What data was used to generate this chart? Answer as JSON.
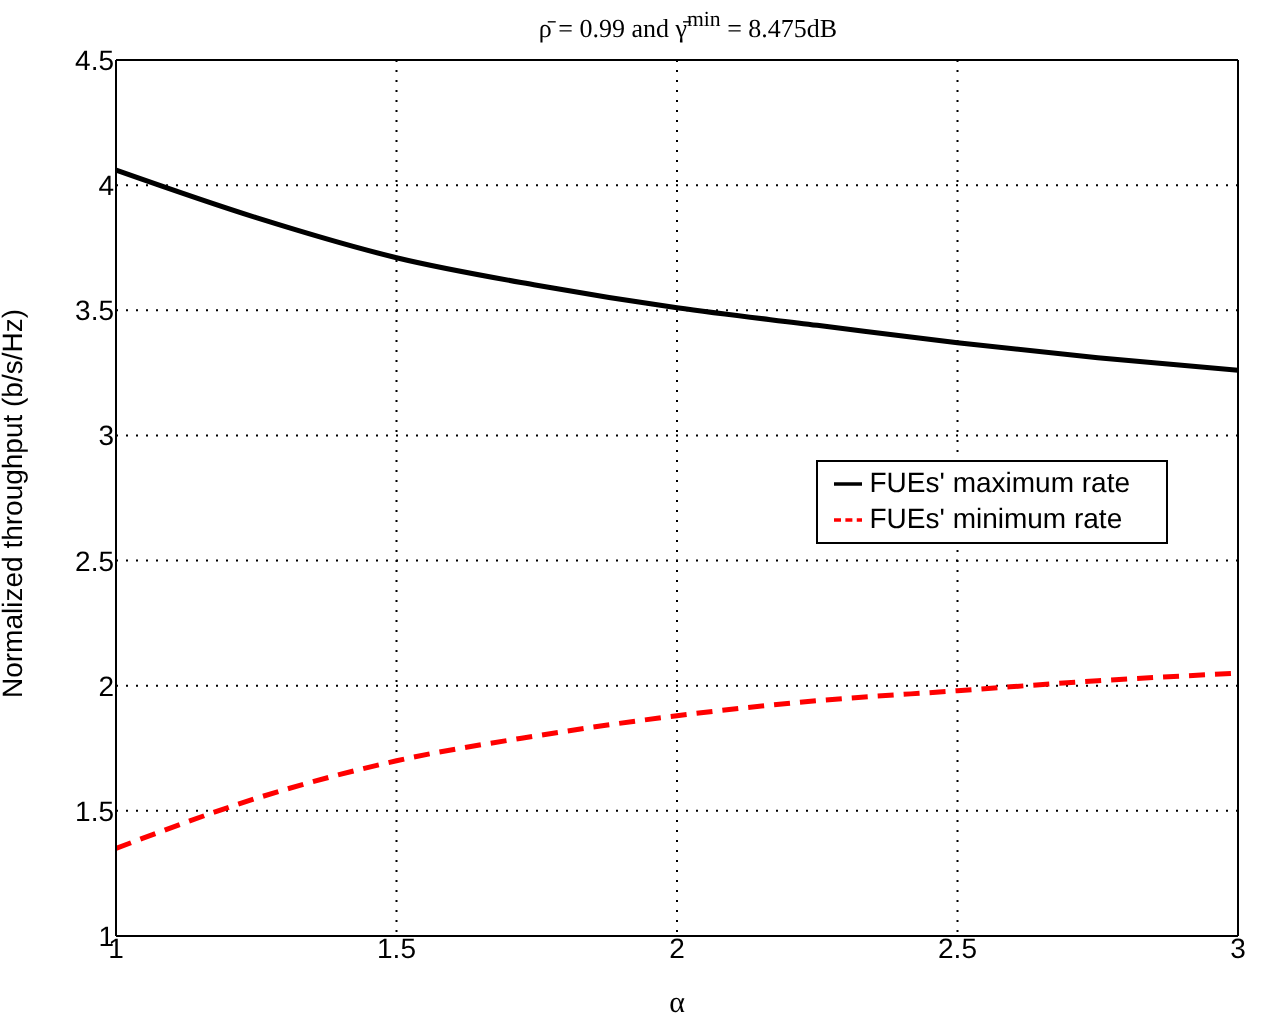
{
  "chart_data": {
    "type": "line",
    "title": "ρ̄ = 0.99 and γ̄$^{min}$ = 8.475dB",
    "xlabel": "α",
    "ylabel": "Normalized throughput (b/s/Hz)",
    "x": [
      1,
      1.25,
      1.5,
      1.75,
      2,
      2.25,
      2.5,
      2.75,
      3
    ],
    "series": [
      {
        "name": "FUEs' maximum rate",
        "color": "#000000",
        "line_style": "solid",
        "values": [
          4.06,
          3.87,
          3.71,
          3.6,
          3.51,
          3.44,
          3.37,
          3.31,
          3.26
        ]
      },
      {
        "name": "FUEs' minimum rate",
        "color": "#ff0000",
        "line_style": "dashed",
        "values": [
          1.35,
          1.55,
          1.7,
          1.8,
          1.88,
          1.94,
          1.98,
          2.02,
          2.05
        ]
      }
    ],
    "xlim": [
      1,
      3
    ],
    "xticks": [
      1,
      1.5,
      2,
      2.5,
      3
    ],
    "ylim": [
      1,
      4.5
    ],
    "yticks": [
      1,
      1.5,
      2,
      2.5,
      3,
      3.5,
      4,
      4.5
    ],
    "grid": true,
    "legend": "right",
    "marker": "none"
  }
}
